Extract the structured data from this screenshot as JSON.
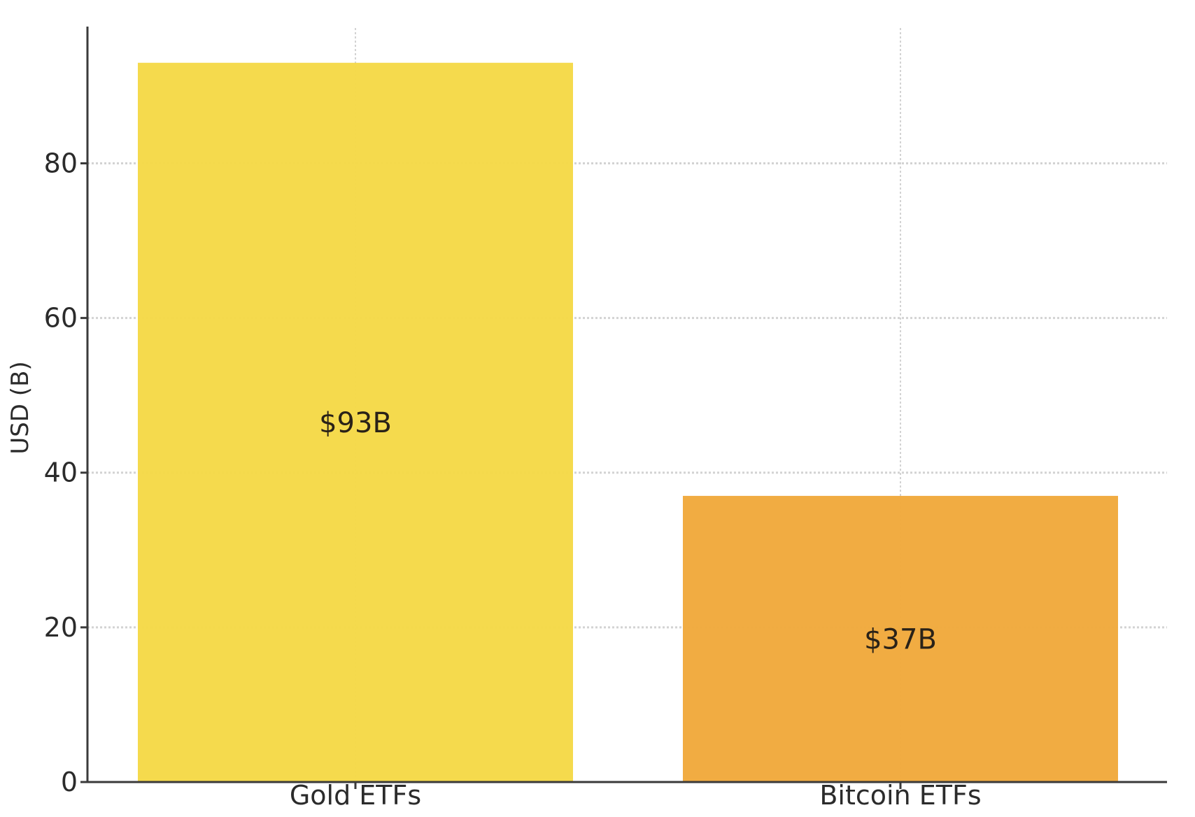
{
  "chart_data": {
    "type": "bar",
    "title": "",
    "xlabel": "",
    "ylabel": "USD (B)",
    "categories": [
      "Gold ETFs",
      "Bitcoin ETFs"
    ],
    "values": [
      93,
      37
    ],
    "data_labels": [
      "$93B",
      "$37B"
    ],
    "colors": [
      "#f5d846",
      "#f0a93a"
    ],
    "ylim": [
      0,
      97.5
    ],
    "yticks": [
      0,
      20,
      40,
      60,
      80
    ],
    "grid": true,
    "legend": "none"
  }
}
